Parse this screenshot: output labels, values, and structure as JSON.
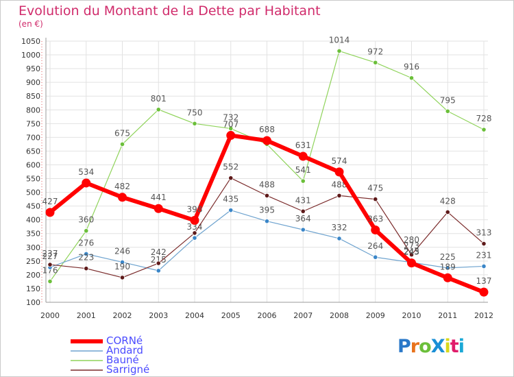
{
  "title": "Evolution du Montant de la Dette par Habitant",
  "subtitle": "(en €)",
  "logo_text": "ProXiti",
  "logo_colors": [
    "#2a78c8",
    "#e8731c",
    "#6bbf3a",
    "#1a8fd6",
    "#d8d81c",
    "#e01c6a",
    "#1aa8d6"
  ],
  "chart_data": {
    "type": "line",
    "x": [
      "2000",
      "2001",
      "2002",
      "2003",
      "2004",
      "2005",
      "2006",
      "2007",
      "2008",
      "2009",
      "2010",
      "2011",
      "2012"
    ],
    "ylim": [
      100,
      1050
    ],
    "yticks": [
      100,
      150,
      200,
      250,
      300,
      350,
      400,
      450,
      500,
      550,
      600,
      650,
      700,
      750,
      800,
      850,
      900,
      950,
      1000,
      1050
    ],
    "grid": true,
    "legend_position": "bottom-left",
    "series": [
      {
        "name": "Bauné",
        "color": "#8fd35a",
        "marker": "#6bbf3a",
        "width": 1.2,
        "values": [
          176,
          360,
          675,
          801,
          750,
          732,
          675,
          541,
          1014,
          972,
          916,
          795,
          728
        ],
        "labels": [
          "176",
          "360",
          "675",
          "801",
          "750",
          "732",
          "",
          "541",
          "1014",
          "972",
          "916",
          "795",
          "728"
        ]
      },
      {
        "name": "Andard",
        "color": "#6ea3cf",
        "marker": "#3a86c8",
        "width": 1.2,
        "values": [
          227,
          276,
          246,
          215,
          334,
          435,
          395,
          364,
          332,
          264,
          245,
          225,
          231
        ],
        "labels": [
          "227",
          "276",
          "246",
          "215",
          "334",
          "435",
          "395",
          "364",
          "332",
          "264",
          "",
          "225",
          "231"
        ]
      },
      {
        "name": "Sarrigné",
        "color": "#7a2a2a",
        "marker": "#5e1a1a",
        "width": 1.2,
        "values": [
          237,
          223,
          190,
          242,
          352,
          552,
          488,
          431,
          488,
          475,
          273,
          428,
          313
        ],
        "labels": [
          "237",
          "223",
          "190",
          "242",
          "",
          "552",
          "488",
          "431",
          "488",
          "475",
          "",
          "428",
          "313"
        ]
      },
      {
        "name": "CORNé",
        "color": "#ff0000",
        "marker": "#ff0000",
        "width": 6,
        "values": [
          427,
          534,
          482,
          441,
          398,
          707,
          688,
          631,
          574,
          363,
          243,
          189,
          137
        ],
        "labels": [
          "427",
          "534",
          "482",
          "441",
          "398",
          "707",
          "688",
          "631",
          "574",
          "363",
          "243",
          "189",
          "137"
        ]
      }
    ],
    "extra_labels": [
      "280",
      "273",
      "245"
    ],
    "legend": [
      {
        "name": "CORNé",
        "color": "#ff0000",
        "text_color": "#4b4bff"
      },
      {
        "name": "Andard",
        "color": "#6ea3cf",
        "text_color": "#4b4bff"
      },
      {
        "name": "Bauné",
        "color": "#8fd35a",
        "text_color": "#4b4bff"
      },
      {
        "name": "Sarrigné",
        "color": "#7a2a2a",
        "text_color": "#4b4bff"
      }
    ]
  }
}
